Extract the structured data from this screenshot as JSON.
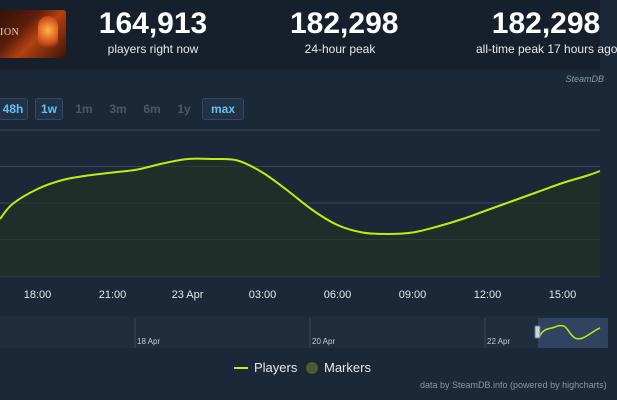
{
  "header": {
    "thumb_text": "ION",
    "stats": [
      {
        "value": "164,913",
        "label": "players right now"
      },
      {
        "value": "182,298",
        "label": "24-hour peak"
      },
      {
        "value": "182,298",
        "label": "all-time peak 17 hours ago"
      }
    ],
    "credit": "SteamDB"
  },
  "ranges": [
    {
      "label": "48h",
      "active": true
    },
    {
      "label": "1w",
      "active": true
    },
    {
      "label": "1m",
      "active": false
    },
    {
      "label": "3m",
      "active": false
    },
    {
      "label": "6m",
      "active": false
    },
    {
      "label": "1y",
      "active": false
    },
    {
      "label": "max",
      "active": true
    }
  ],
  "colors": {
    "series": "#beee11",
    "grid": "#3a4756",
    "bg": "#1b2838",
    "muted": "#4a5968",
    "accent": "#66c0f4"
  },
  "chart_data": {
    "type": "area",
    "x_ticks": [
      "18:00",
      "21:00",
      "23 Apr",
      "03:00",
      "06:00",
      "09:00",
      "12:00",
      "15:00"
    ],
    "series": [
      {
        "name": "Players",
        "x_hours": [
          16.5,
          17,
          18,
          19,
          20,
          21,
          22,
          23,
          24,
          25,
          26,
          27,
          28,
          29,
          30,
          31,
          32,
          33,
          34,
          35,
          36,
          37,
          38,
          39,
          40,
          40.5
        ],
        "values": [
          0.38,
          0.48,
          0.58,
          0.64,
          0.67,
          0.69,
          0.71,
          0.75,
          0.78,
          0.78,
          0.77,
          0.69,
          0.57,
          0.44,
          0.34,
          0.29,
          0.28,
          0.29,
          0.33,
          0.38,
          0.44,
          0.5,
          0.56,
          0.62,
          0.67,
          0.7
        ]
      }
    ],
    "grid": true,
    "legend": [
      "Players",
      "Markers"
    ],
    "navigator": {
      "labels": [
        "18 Apr",
        "20 Apr",
        "22 Apr"
      ]
    }
  },
  "legend": {
    "players": "Players",
    "markers": "Markers"
  },
  "footer": "data by SteamDB.info (powered by highcharts)"
}
